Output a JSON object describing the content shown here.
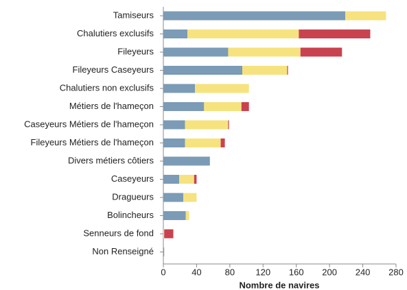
{
  "chart_data": {
    "type": "stacked_barh",
    "x_label": "Nombre de navires",
    "categories": [
      "Tamiseurs",
      "Chalutiers exclusifs",
      "Fileyeurs",
      "Fileyeurs Caseyeurs",
      "Chalutiers non exclusifs",
      "Métiers de l'hameçon",
      "Caseyeurs Métiers de l'hameçon",
      "Fileyeurs Métiers de l'hameçon",
      "Divers métiers côtiers",
      "Caseyeurs",
      "Dragueurs",
      "Bolincheurs",
      "Senneurs de fond",
      "Non Renseigné"
    ],
    "series": [
      {
        "color": "#7b9bb6",
        "values": [
          219,
          29,
          78,
          95,
          38,
          49,
          26,
          26,
          56,
          19,
          24,
          27,
          0,
          1
        ]
      },
      {
        "color": "#f6e37f",
        "values": [
          49,
          134,
          87,
          54,
          65,
          45,
          52,
          43,
          0,
          18,
          16,
          4,
          1,
          0
        ]
      },
      {
        "color": "#c9424f",
        "values": [
          0,
          86,
          50,
          1,
          0,
          9,
          1,
          5,
          0,
          3,
          0,
          0,
          11,
          0
        ]
      }
    ],
    "xlim": [
      0,
      280
    ],
    "xticks": [
      0,
      40,
      80,
      120,
      160,
      200,
      240,
      280
    ]
  }
}
